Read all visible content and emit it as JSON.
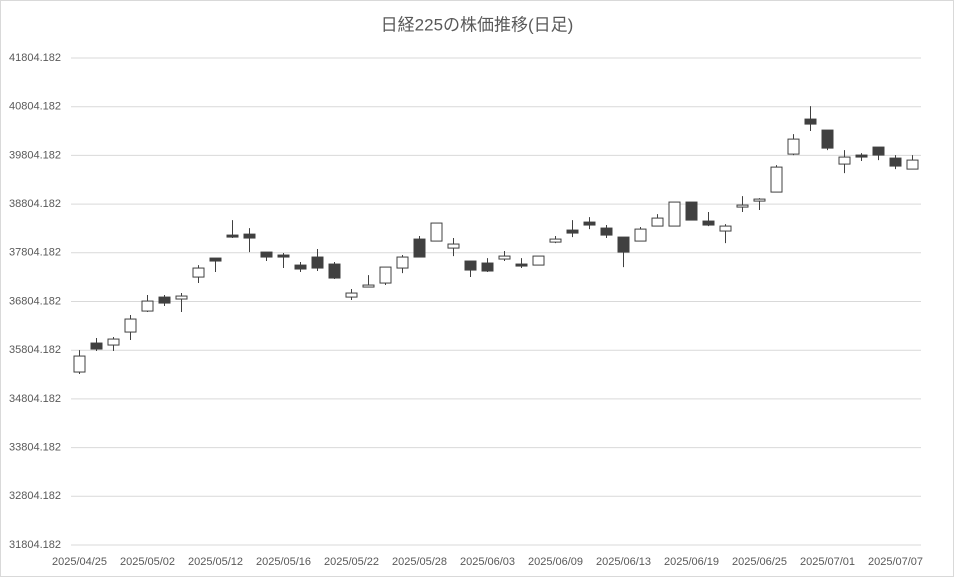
{
  "chart_data": {
    "type": "candlestick",
    "title": "日経225の株価推移(日足)",
    "categories": [
      "2025/04/25",
      null,
      null,
      null,
      "2025/05/02",
      null,
      null,
      null,
      "2025/05/12",
      null,
      null,
      null,
      "2025/05/16",
      null,
      null,
      null,
      "2025/05/22",
      null,
      null,
      null,
      "2025/05/28",
      null,
      null,
      null,
      "2025/06/03",
      null,
      null,
      null,
      "2025/06/09",
      null,
      null,
      null,
      "2025/06/13",
      null,
      null,
      null,
      "2025/06/19",
      null,
      null,
      null,
      "2025/06/25",
      null,
      null,
      null,
      "2025/07/01",
      null,
      null,
      null,
      "2025/07/07",
      null
    ],
    "open": [
      35356,
      35951,
      35910,
      36177,
      36608,
      36895,
      36855,
      37306,
      37696,
      38168,
      38188,
      37819,
      37758,
      37552,
      37717,
      37573,
      36895,
      37101,
      37183,
      37491,
      38086,
      38045,
      37901,
      37635,
      37594,
      37676,
      37573,
      37552,
      38024,
      38271,
      38435,
      38312,
      38127,
      38045,
      38353,
      38353,
      38846,
      38456,
      38251,
      38743,
      38866,
      39051,
      39831,
      40550,
      40324,
      39626,
      39811,
      39975,
      39749,
      39523
    ],
    "high": [
      35807,
      36054,
      36074,
      36526,
      36937,
      36937,
      36978,
      37552,
      37696,
      38476,
      38312,
      37819,
      37799,
      37614,
      37881,
      37614,
      37060,
      37347,
      37511,
      37758,
      38148,
      38415,
      38107,
      37635,
      37696,
      37840,
      37696,
      37737,
      38148,
      38476,
      38538,
      38374,
      38127,
      38333,
      38599,
      38846,
      38846,
      38641,
      38394,
      38969,
      38928,
      39605,
      40242,
      40817,
      40324,
      39913,
      39852,
      39975,
      39811,
      39811
    ],
    "low": [
      35315,
      35787,
      35787,
      36013,
      36588,
      36711,
      36588,
      37183,
      37409,
      38107,
      37819,
      37635,
      37491,
      37409,
      37430,
      37265,
      36834,
      37101,
      37142,
      37388,
      37717,
      38045,
      37737,
      37306,
      37409,
      37635,
      37491,
      37552,
      38004,
      38127,
      38291,
      38107,
      37511,
      38045,
      38353,
      38353,
      38476,
      38353,
      38004,
      38641,
      38682,
      39051,
      39811,
      40304,
      39913,
      39441,
      39688,
      39708,
      39523,
      39523
    ],
    "close": [
      35684,
      35828,
      36033,
      36444,
      36813,
      36772,
      36916,
      37491,
      37635,
      38127,
      38107,
      37717,
      37717,
      37471,
      37491,
      37286,
      36978,
      37142,
      37511,
      37717,
      37717,
      38415,
      37984,
      37450,
      37430,
      37737,
      37532,
      37737,
      38086,
      38209,
      38374,
      38168,
      37819,
      38291,
      38517,
      38846,
      38476,
      38374,
      38353,
      38784,
      38907,
      39564,
      40139,
      40447,
      39954,
      39770,
      39770,
      39811,
      39585,
      39708
    ],
    "up_color": "#ffffff",
    "down_color": "#404040",
    "edge_color": "#404040",
    "ylim": [
      31804.182,
      41804.182
    ],
    "yticks": [
      31804.182,
      32804.182,
      33804.182,
      34804.182,
      35804.182,
      36804.182,
      37804.182,
      38804.182,
      39804.182,
      40804.182,
      41804.182
    ],
    "grid": true
  }
}
